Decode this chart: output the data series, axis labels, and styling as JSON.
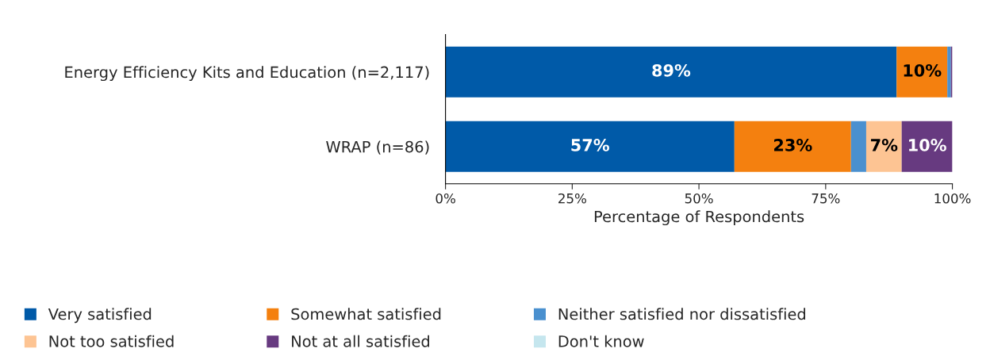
{
  "chart_data": {
    "type": "bar",
    "orientation": "horizontal",
    "stacked": true,
    "categories": [
      "Energy Efficiency Kits and Education (n=2,117)",
      "WRAP (n=86)"
    ],
    "series": [
      {
        "name": "Very satisfied",
        "color": "#005aa8",
        "values": [
          89,
          57
        ],
        "value_labels": [
          "89%",
          "57%"
        ]
      },
      {
        "name": "Somewhat satisfied",
        "color": "#f4800f",
        "values": [
          10,
          23
        ],
        "value_labels": [
          "10%",
          "23%"
        ]
      },
      {
        "name": "Neither satisfied nor dissatisfied",
        "color": "#4a90cf",
        "values": [
          0.7,
          3
        ],
        "value_labels": [
          null,
          null
        ]
      },
      {
        "name": "Not too satisfied",
        "color": "#fdc493",
        "values": [
          0,
          7
        ],
        "value_labels": [
          null,
          "7%"
        ]
      },
      {
        "name": "Not at all satisfied",
        "color": "#673a80",
        "values": [
          0.3,
          10
        ],
        "value_labels": [
          null,
          "10%"
        ]
      },
      {
        "name": "Don't know",
        "color": "#c5e6ee",
        "values": [
          0,
          0
        ],
        "value_labels": [
          null,
          null
        ]
      }
    ],
    "xlim": [
      0,
      100
    ],
    "xticks": [
      {
        "value": 0,
        "label": "0%"
      },
      {
        "value": 25,
        "label": "25%"
      },
      {
        "value": 50,
        "label": "50%"
      },
      {
        "value": 75,
        "label": "75%"
      },
      {
        "value": 100,
        "label": "100%"
      }
    ],
    "xlabel": "Percentage of Respondents",
    "legend": "bottom",
    "grid": false
  }
}
